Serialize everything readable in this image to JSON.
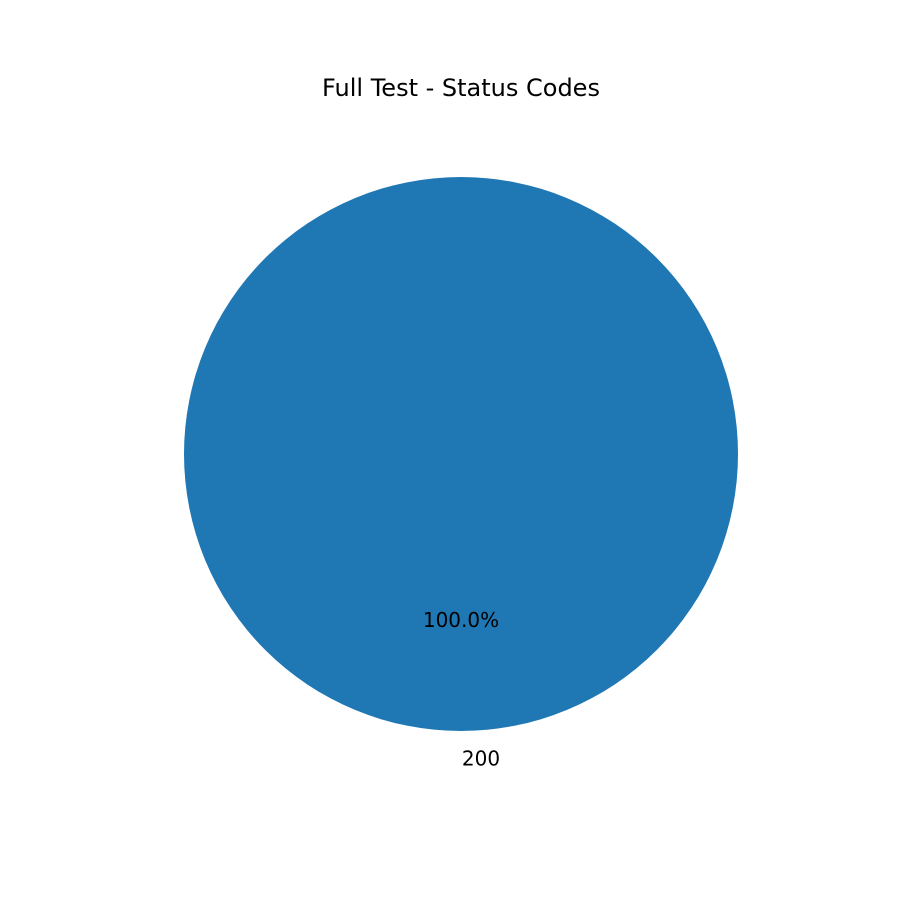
{
  "chart_data": {
    "type": "pie",
    "title": "Full Test - Status Codes",
    "categories": [
      "200"
    ],
    "values": [
      100.0
    ],
    "percent_labels": [
      "100.0%"
    ],
    "colors": [
      "#1f77b4"
    ],
    "legend": "none"
  }
}
